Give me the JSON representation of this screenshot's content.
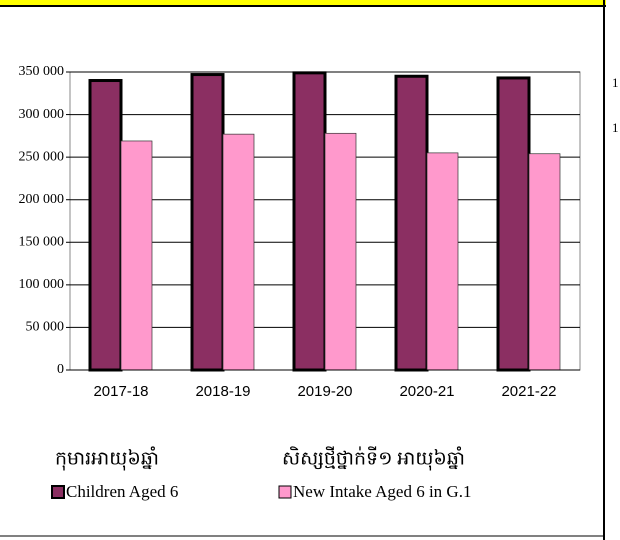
{
  "chart_data": {
    "type": "bar",
    "categories": [
      "2017-18",
      "2018-19",
      "2019-20",
      "2020-21",
      "2021-22"
    ],
    "series": [
      {
        "name": "Children Aged 6",
        "name_khmer": "កុមារអាយុ៦ឆ្នាំ",
        "color": "#8b2f62",
        "values": [
          340000,
          347000,
          349000,
          345000,
          343000
        ]
      },
      {
        "name": "New Intake Aged 6 in G.1",
        "name_khmer": "សិស្សថ្មីថ្នាក់ទី១ អាយុ៦ឆ្នាំ",
        "color": "#ff99cc",
        "values": [
          269000,
          277000,
          278000,
          255000,
          254000
        ]
      }
    ],
    "ylim": [
      0,
      350000
    ],
    "yticks": [
      {
        "value": 0,
        "label": "0"
      },
      {
        "value": 50000,
        "label": "50 000"
      },
      {
        "value": 100000,
        "label": "100 000"
      },
      {
        "value": 150000,
        "label": "150 000"
      },
      {
        "value": 200000,
        "label": "200 000"
      },
      {
        "value": 250000,
        "label": "250 000"
      },
      {
        "value": 300000,
        "label": "300 000"
      },
      {
        "value": 350000,
        "label": "350 000"
      }
    ],
    "grid": true
  },
  "clipped_labels": [
    "1",
    "1"
  ]
}
